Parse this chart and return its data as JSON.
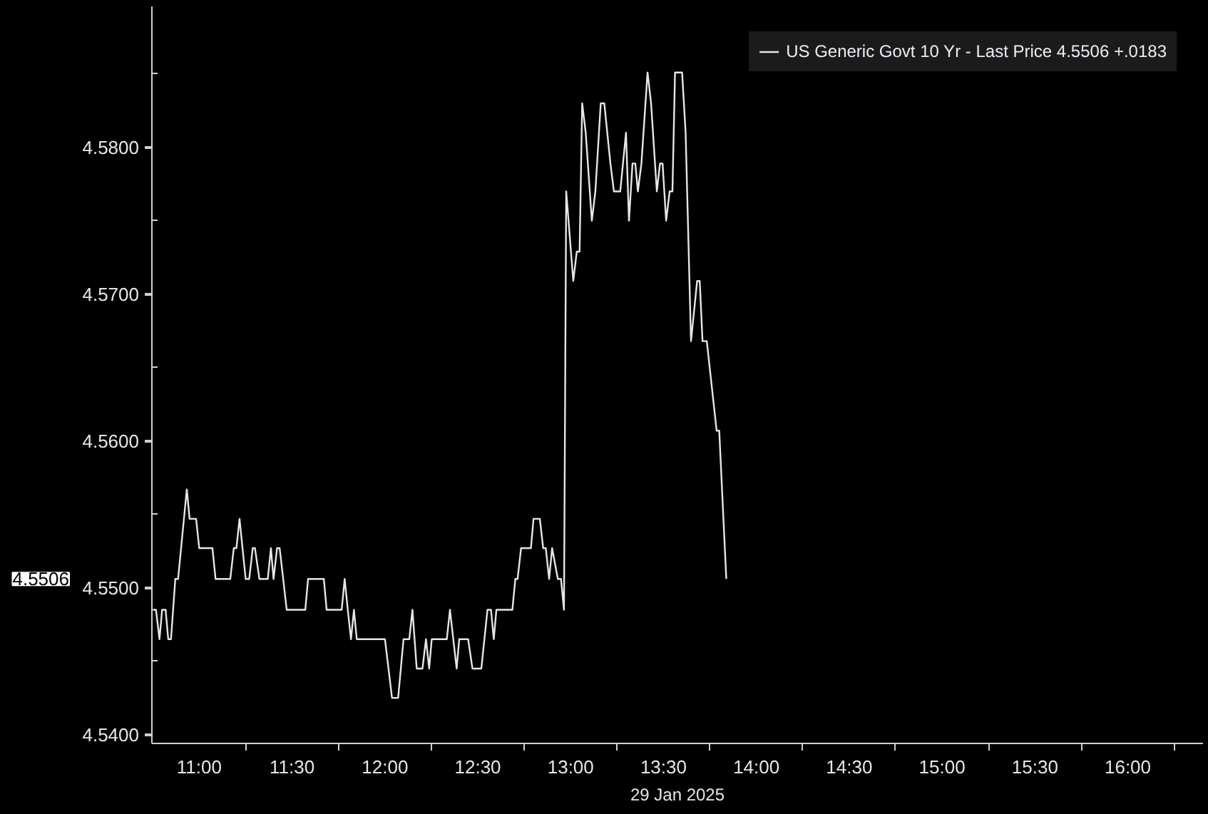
{
  "chart_data": {
    "type": "line",
    "xlabel": "29 Jan 2025",
    "xlim": [
      10.745,
      16.405
    ],
    "ylim": [
      4.5394,
      4.5896
    ],
    "xticks": [
      {
        "value": 11,
        "label": "11:00"
      },
      {
        "value": 11.5,
        "label": "11:30"
      },
      {
        "value": 12,
        "label": "12:00"
      },
      {
        "value": 12.5,
        "label": "12:30"
      },
      {
        "value": 13,
        "label": "13:00"
      },
      {
        "value": 13.5,
        "label": "13:30"
      },
      {
        "value": 14,
        "label": "14:00"
      },
      {
        "value": 14.5,
        "label": "14:30"
      },
      {
        "value": 15,
        "label": "15:00"
      },
      {
        "value": 15.5,
        "label": "15:30"
      },
      {
        "value": 16,
        "label": "16:00"
      },
      {
        "value": 11.25,
        "label": null
      },
      {
        "value": 11.75,
        "label": null
      },
      {
        "value": 12.25,
        "label": null
      },
      {
        "value": 12.75,
        "label": null
      },
      {
        "value": 13.25,
        "label": null
      },
      {
        "value": 13.75,
        "label": null
      },
      {
        "value": 14.25,
        "label": null
      },
      {
        "value": 14.75,
        "label": null
      },
      {
        "value": 15.25,
        "label": null
      },
      {
        "value": 15.75,
        "label": null
      },
      {
        "value": 16.25,
        "label": null
      }
    ],
    "yticks": [
      {
        "value": 4.54,
        "label": "4.5400"
      },
      {
        "value": 4.55,
        "label": "4.5500"
      },
      {
        "value": 4.56,
        "label": "4.5600"
      },
      {
        "value": 4.57,
        "label": "4.5700"
      },
      {
        "value": 4.58,
        "label": "4.5800"
      },
      {
        "value": 4.545,
        "label": null
      },
      {
        "value": 4.555,
        "label": null
      },
      {
        "value": 4.565,
        "label": null
      },
      {
        "value": 4.575,
        "label": null
      },
      {
        "value": 4.585,
        "label": null
      }
    ],
    "legend": "top right",
    "annotations": [
      "4.5506"
    ],
    "series": [
      {
        "name": "US Generic Govt 10 Yr - Last Price 4.5506 +.0183",
        "color": "#e6e6e6",
        "x": [
          10.75,
          10.767,
          10.786,
          10.8,
          10.819,
          10.833,
          10.848,
          10.871,
          10.886,
          10.933,
          10.948,
          10.983,
          11.0,
          11.071,
          11.088,
          11.167,
          11.186,
          11.2,
          11.217,
          11.233,
          11.25,
          11.269,
          11.288,
          11.3,
          11.324,
          11.369,
          11.386,
          11.4,
          11.419,
          11.433,
          11.471,
          11.571,
          11.586,
          11.671,
          11.686,
          11.767,
          11.783,
          11.8,
          11.817,
          11.833,
          11.848,
          12.0,
          12.038,
          12.071,
          12.1,
          12.131,
          12.148,
          12.171,
          12.202,
          12.221,
          12.238,
          12.252,
          12.333,
          12.35,
          12.386,
          12.4,
          12.448,
          12.471,
          12.519,
          12.552,
          12.571,
          12.586,
          12.6,
          12.686,
          12.702,
          12.714,
          12.733,
          12.786,
          12.8,
          12.834,
          12.852,
          12.866,
          12.884,
          12.9,
          12.931,
          12.948,
          12.964,
          12.976,
          13.014,
          13.033,
          13.048,
          13.062,
          13.081,
          13.114,
          13.133,
          13.162,
          13.181,
          13.214,
          13.233,
          13.267,
          13.298,
          13.314,
          13.333,
          13.348,
          13.362,
          13.381,
          13.414,
          13.433,
          13.464,
          13.481,
          13.495,
          13.514,
          13.533,
          13.548,
          13.562,
          13.6,
          13.619,
          13.648,
          13.681,
          13.695,
          13.71,
          13.733,
          13.786,
          13.8,
          13.838
        ],
        "values": [
          4.5485,
          4.5485,
          4.5465,
          4.5485,
          4.5485,
          4.5465,
          4.5465,
          4.5506,
          4.5506,
          4.5567,
          4.5547,
          4.5547,
          4.5527,
          4.5527,
          4.5506,
          4.5506,
          4.5527,
          4.5527,
          4.5547,
          4.5527,
          4.5506,
          4.5506,
          4.5527,
          4.5527,
          4.5506,
          4.5506,
          4.5527,
          4.5506,
          4.5527,
          4.5527,
          4.5485,
          4.5485,
          4.5506,
          4.5506,
          4.5485,
          4.5485,
          4.5506,
          4.5485,
          4.5465,
          4.5485,
          4.5465,
          4.5465,
          4.5425,
          4.5425,
          4.5465,
          4.5465,
          4.5485,
          4.5445,
          4.5445,
          4.5465,
          4.5445,
          4.5465,
          4.5465,
          4.5485,
          4.5445,
          4.5465,
          4.5465,
          4.5445,
          4.5445,
          4.5485,
          4.5485,
          4.5465,
          4.5485,
          4.5485,
          4.5506,
          4.5506,
          4.5527,
          4.5527,
          4.5547,
          4.5547,
          4.5527,
          4.5527,
          4.5506,
          4.5527,
          4.5506,
          4.5506,
          4.5485,
          4.577,
          4.5709,
          4.5729,
          4.5729,
          4.583,
          4.581,
          4.575,
          4.577,
          4.583,
          4.583,
          4.5789,
          4.577,
          4.577,
          4.581,
          4.575,
          4.5789,
          4.5789,
          4.577,
          4.5789,
          4.5851,
          4.583,
          4.577,
          4.5789,
          4.5789,
          4.575,
          4.577,
          4.577,
          4.5851,
          4.5851,
          4.581,
          4.5668,
          4.5709,
          4.5709,
          4.5668,
          4.5668,
          4.5607,
          4.5607,
          4.5506
        ]
      }
    ]
  }
}
